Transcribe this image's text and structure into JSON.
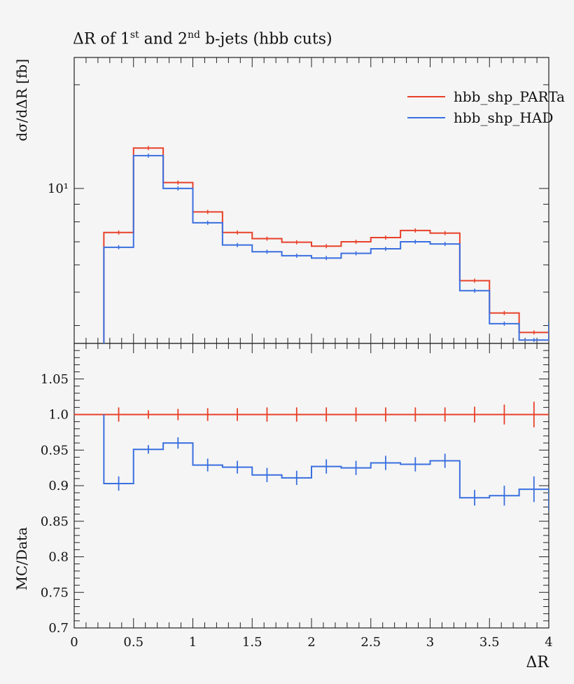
{
  "chart_data": [
    {
      "type": "line",
      "panel": "main",
      "title_parts": {
        "pre": "ΔR of 1",
        "sup1": "st",
        "mid": " and 2",
        "sup2": "nd",
        "post": " b-jets (hbb cuts)"
      },
      "ylabel": "dσ/dΔR [fb]",
      "yscale": "log",
      "ylim": [
        3.55,
        24
      ],
      "yticks": [
        {
          "value": 10,
          "label": "10¹"
        }
      ],
      "xlim": [
        0,
        4
      ],
      "legend_position": "top-right",
      "bin_edges": [
        0.25,
        0.5,
        0.75,
        1.0,
        1.25,
        1.5,
        1.75,
        2.0,
        2.25,
        2.5,
        2.75,
        3.0,
        3.25,
        3.5,
        3.75,
        4.0
      ],
      "series": [
        {
          "name": "hbb_shp_PARTa",
          "color": "#e8412a",
          "values": [
            7.45,
            13.1,
            10.4,
            8.55,
            7.45,
            7.15,
            6.98,
            6.8,
            7.0,
            7.2,
            7.55,
            7.42,
            5.4,
            4.35,
            3.82
          ]
        },
        {
          "name": "hbb_shp_HAD",
          "color": "#3a6fe0",
          "values": [
            6.75,
            12.45,
            10.0,
            7.95,
            6.85,
            6.55,
            6.38,
            6.28,
            6.48,
            6.68,
            7.0,
            6.9,
            5.05,
            4.05,
            3.63
          ]
        }
      ]
    },
    {
      "type": "line",
      "panel": "ratio",
      "ylabel": "MC/Data",
      "xlabel": "ΔR",
      "ylim": [
        0.7,
        1.1
      ],
      "yticks": [
        0.7,
        0.75,
        0.8,
        0.85,
        0.9,
        0.95,
        1.0,
        1.05
      ],
      "ytick_labels": [
        "0.7",
        "0.75",
        "0.8",
        "0.85",
        "0.9",
        "0.95",
        "1.0",
        "1.05"
      ],
      "xlim": [
        0,
        4
      ],
      "xticks": [
        0,
        0.5,
        1,
        1.5,
        2,
        2.5,
        3,
        3.5,
        4
      ],
      "xtick_labels": [
        "0",
        "0.5",
        "1",
        "1.5",
        "2",
        "2.5",
        "3",
        "3.5",
        "4"
      ],
      "bin_edges": [
        0.25,
        0.5,
        0.75,
        1.0,
        1.25,
        1.5,
        1.75,
        2.0,
        2.25,
        2.5,
        2.75,
        3.0,
        3.25,
        3.5,
        3.75,
        4.0
      ],
      "series": [
        {
          "name": "hbb_shp_PARTa",
          "color": "#e8412a",
          "values": [
            1.0,
            1.0,
            1.0,
            1.0,
            1.0,
            1.0,
            1.0,
            1.0,
            1.0,
            1.0,
            1.0,
            1.0,
            1.0,
            1.0,
            1.0
          ],
          "errors": [
            0.01,
            0.006,
            0.008,
            0.009,
            0.009,
            0.01,
            0.01,
            0.01,
            0.01,
            0.01,
            0.01,
            0.01,
            0.011,
            0.014,
            0.018
          ]
        },
        {
          "name": "hbb_shp_HAD",
          "color": "#3a6fe0",
          "values": [
            0.903,
            0.951,
            0.96,
            0.929,
            0.926,
            0.915,
            0.911,
            0.927,
            0.925,
            0.932,
            0.93,
            0.935,
            0.883,
            0.886,
            0.895
          ],
          "errors": [
            0.01,
            0.006,
            0.008,
            0.009,
            0.009,
            0.01,
            0.01,
            0.01,
            0.01,
            0.01,
            0.01,
            0.01,
            0.011,
            0.014,
            0.018
          ]
        }
      ]
    }
  ]
}
